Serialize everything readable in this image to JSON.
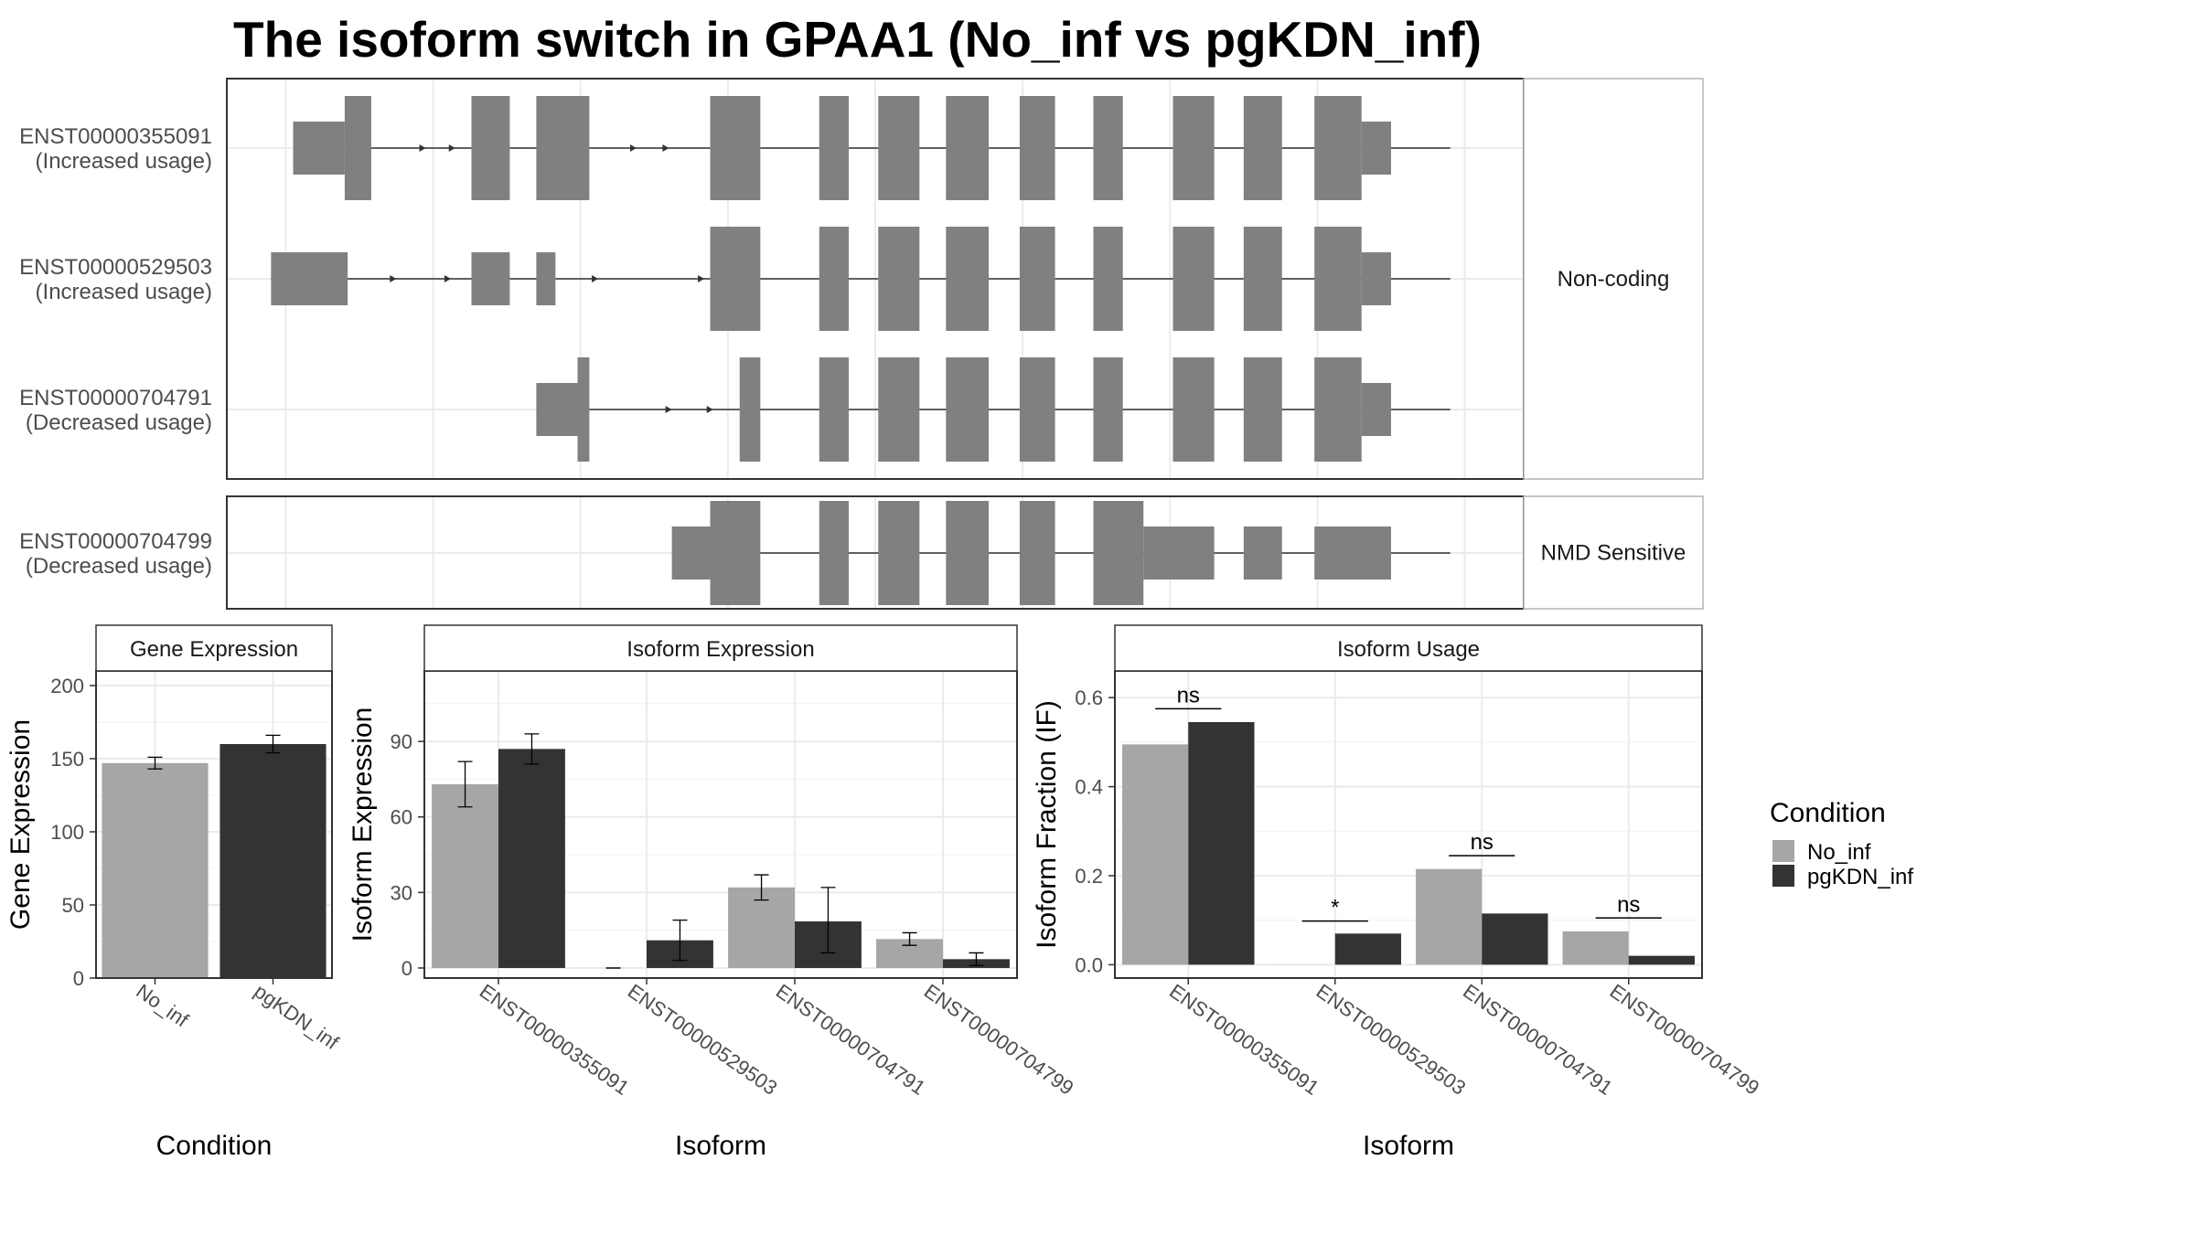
{
  "title": "The isoform switch in GPAA1 (No_inf vs pgKDN_inf)",
  "colors": {
    "exon": "#808080",
    "no_inf": "#a6a6a6",
    "pgkdn_inf": "#333333",
    "grid": "#ebebeb",
    "border": "#333333"
  },
  "structure": {
    "groups": [
      {
        "label": "Non-coding",
        "transcripts": [
          {
            "id": "ENST00000355091",
            "status": "(Increased usage)",
            "tx_start": 1.05,
            "tx_end": 9.15,
            "exons": [
              {
                "s": 1.05,
                "e": 1.4,
                "coding": false
              },
              {
                "s": 1.4,
                "e": 1.58,
                "coding": true
              },
              {
                "s": 2.26,
                "e": 2.52,
                "coding": true
              },
              {
                "s": 2.7,
                "e": 3.06,
                "coding": true
              },
              {
                "s": 3.88,
                "e": 4.22,
                "coding": true
              },
              {
                "s": 4.62,
                "e": 4.82,
                "coding": true
              },
              {
                "s": 5.02,
                "e": 5.3,
                "coding": true
              },
              {
                "s": 5.48,
                "e": 5.77,
                "coding": true
              },
              {
                "s": 5.98,
                "e": 6.22,
                "coding": true
              },
              {
                "s": 6.48,
                "e": 6.68,
                "coding": true
              },
              {
                "s": 7.02,
                "e": 7.3,
                "coding": true
              },
              {
                "s": 7.5,
                "e": 7.76,
                "coding": true
              },
              {
                "s": 7.98,
                "e": 8.3,
                "coding": true
              },
              {
                "s": 8.3,
                "e": 8.5,
                "coding": false
              }
            ],
            "arrows": [
              1.95,
              2.15,
              3.38,
              3.6
            ]
          },
          {
            "id": "ENST00000529503",
            "status": "(Increased usage)",
            "tx_start": 0.9,
            "tx_end": 9.15,
            "exons": [
              {
                "s": 0.9,
                "e": 1.42,
                "coding": false
              },
              {
                "s": 2.26,
                "e": 2.52,
                "coding": false
              },
              {
                "s": 2.7,
                "e": 2.83,
                "coding": false
              },
              {
                "s": 3.88,
                "e": 4.22,
                "coding": true
              },
              {
                "s": 4.62,
                "e": 4.82,
                "coding": true
              },
              {
                "s": 5.02,
                "e": 5.3,
                "coding": true
              },
              {
                "s": 5.48,
                "e": 5.77,
                "coding": true
              },
              {
                "s": 5.98,
                "e": 6.22,
                "coding": true
              },
              {
                "s": 6.48,
                "e": 6.68,
                "coding": true
              },
              {
                "s": 7.02,
                "e": 7.3,
                "coding": true
              },
              {
                "s": 7.5,
                "e": 7.76,
                "coding": true
              },
              {
                "s": 7.98,
                "e": 8.3,
                "coding": true
              },
              {
                "s": 8.3,
                "e": 8.5,
                "coding": false
              }
            ],
            "arrows": [
              1.75,
              2.12,
              3.12,
              3.84
            ]
          },
          {
            "id": "ENST00000704791",
            "status": "(Decreased usage)",
            "tx_start": 2.7,
            "tx_end": 9.15,
            "exons": [
              {
                "s": 2.7,
                "e": 2.98,
                "coding": false
              },
              {
                "s": 2.98,
                "e": 3.06,
                "coding": true
              },
              {
                "s": 4.08,
                "e": 4.22,
                "coding": true
              },
              {
                "s": 4.62,
                "e": 4.82,
                "coding": true
              },
              {
                "s": 5.02,
                "e": 5.3,
                "coding": true
              },
              {
                "s": 5.48,
                "e": 5.77,
                "coding": true
              },
              {
                "s": 5.98,
                "e": 6.22,
                "coding": true
              },
              {
                "s": 6.48,
                "e": 6.68,
                "coding": true
              },
              {
                "s": 7.02,
                "e": 7.3,
                "coding": true
              },
              {
                "s": 7.5,
                "e": 7.76,
                "coding": true
              },
              {
                "s": 7.98,
                "e": 8.3,
                "coding": true
              },
              {
                "s": 8.3,
                "e": 8.5,
                "coding": false
              }
            ],
            "arrows": [
              3.62,
              3.9
            ]
          }
        ]
      },
      {
        "label": "NMD Sensitive",
        "transcripts": [
          {
            "id": "ENST00000704799",
            "status": "(Decreased usage)",
            "tx_start": 3.62,
            "tx_end": 9.15,
            "exons": [
              {
                "s": 3.62,
                "e": 3.88,
                "coding": false
              },
              {
                "s": 3.88,
                "e": 4.22,
                "coding": true
              },
              {
                "s": 4.62,
                "e": 4.82,
                "coding": true
              },
              {
                "s": 5.02,
                "e": 5.3,
                "coding": true
              },
              {
                "s": 5.48,
                "e": 5.77,
                "coding": true
              },
              {
                "s": 5.98,
                "e": 6.22,
                "coding": true
              },
              {
                "s": 6.48,
                "e": 6.82,
                "coding": true
              },
              {
                "s": 6.82,
                "e": 7.3,
                "coding": false
              },
              {
                "s": 7.5,
                "e": 7.76,
                "coding": false
              },
              {
                "s": 7.98,
                "e": 8.5,
                "coding": false
              }
            ],
            "arrows": []
          }
        ]
      }
    ]
  },
  "chart_data": [
    {
      "type": "bar",
      "facet": "Gene Expression",
      "xlabel": "Condition",
      "ylabel": "Gene Expression",
      "ylim": [
        0,
        210
      ],
      "yticks": [
        0,
        50,
        100,
        150,
        200
      ],
      "categories": [
        "No_inf",
        "pgKDN_inf"
      ],
      "values": [
        147,
        160
      ],
      "errors": [
        [
          143,
          151
        ],
        [
          154,
          166
        ]
      ]
    },
    {
      "type": "bar",
      "facet": "Isoform Expression",
      "xlabel": "Isoform",
      "ylabel": "Isoform Expression",
      "ylim": [
        -4,
        118
      ],
      "yticks": [
        0,
        30,
        60,
        90
      ],
      "categories": [
        "ENST00000355091",
        "ENST00000529503",
        "ENST00000704791",
        "ENST00000704799"
      ],
      "series": [
        {
          "name": "No_inf",
          "values": [
            73,
            0,
            32,
            11.5
          ],
          "errors": [
            [
              64,
              82
            ],
            [
              0,
              0
            ],
            [
              27,
              37
            ],
            [
              9,
              14
            ]
          ]
        },
        {
          "name": "pgKDN_inf",
          "values": [
            87,
            11,
            18.5,
            3.5
          ],
          "errors": [
            [
              81,
              93
            ],
            [
              3,
              19
            ],
            [
              6,
              32
            ],
            [
              1,
              6
            ]
          ]
        }
      ]
    },
    {
      "type": "bar",
      "facet": "Isoform Usage",
      "xlabel": "Isoform",
      "ylabel": "Isoform Fraction (IF)",
      "ylim": [
        -0.03,
        0.66
      ],
      "yticks": [
        0.0,
        0.2,
        0.4,
        0.6
      ],
      "ytick_labels": [
        "0.0",
        "0.2",
        "0.4",
        "0.6"
      ],
      "categories": [
        "ENST00000355091",
        "ENST00000529503",
        "ENST00000704791",
        "ENST00000704799"
      ],
      "series": [
        {
          "name": "No_inf",
          "values": [
            0.495,
            0.0,
            0.215,
            0.075
          ]
        },
        {
          "name": "pgKDN_inf",
          "values": [
            0.545,
            0.07,
            0.115,
            0.02
          ]
        }
      ],
      "significance": [
        {
          "label": "ns",
          "y": 0.575
        },
        {
          "label": "*",
          "y": 0.098
        },
        {
          "label": "ns",
          "y": 0.245
        },
        {
          "label": "ns",
          "y": 0.105
        }
      ]
    }
  ],
  "legend": {
    "title": "Condition",
    "items": [
      {
        "label": "No_inf",
        "color": "#a6a6a6"
      },
      {
        "label": "pgKDN_inf",
        "color": "#333333"
      }
    ]
  }
}
